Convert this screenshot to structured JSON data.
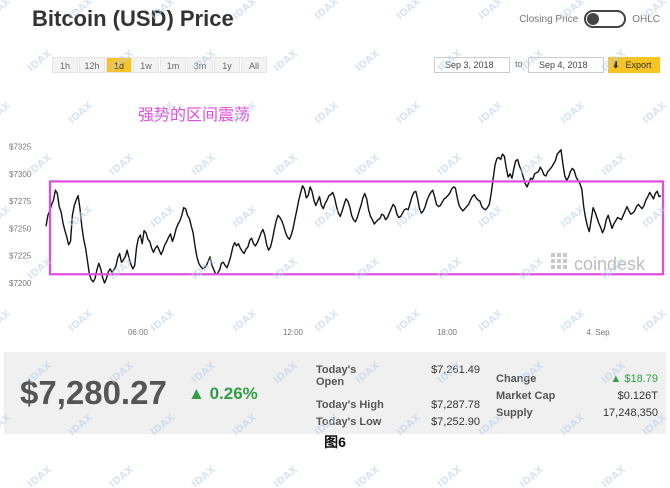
{
  "header": {
    "title": "Bitcoin (USD) Price",
    "toggle_left": "Closing Price",
    "toggle_right": "OHLC"
  },
  "toolbar": {
    "ranges": [
      "1h",
      "12h",
      "1d",
      "1w",
      "1m",
      "3m",
      "1y",
      "All"
    ],
    "active_range": "1d",
    "date_from": "Sep 3, 2018",
    "date_sep": "to",
    "date_to": "Sep 4, 2018",
    "export_label": "Export",
    "export_icon": "download-arrow-icon"
  },
  "chart_data": {
    "type": "line",
    "annotation": "强势的区间震荡",
    "x_ticks": [
      "06:00",
      "12:00",
      "18:00",
      "4. Sep"
    ],
    "y_ticks": [
      "$7325",
      "$7300",
      "$7275",
      "$7250",
      "$7225",
      "$7200"
    ],
    "ylim": [
      7195,
      7335
    ],
    "range_box": [
      7208,
      7293
    ],
    "line_color": "#111111",
    "box_color": "#e14be0",
    "annotation_color": "#e14be0",
    "watermark": "coindesk",
    "series": [
      {
        "values": [
          7252,
          7262,
          7266,
          7272,
          7276,
          7285,
          7282,
          7270,
          7265,
          7255,
          7248,
          7242,
          7235,
          7238,
          7262,
          7271,
          7276,
          7280,
          7268,
          7252,
          7240,
          7232,
          7220,
          7208,
          7203,
          7201,
          7204,
          7212,
          7218,
          7213,
          7205,
          7200,
          7204,
          7210,
          7213,
          7210,
          7212,
          7215,
          7223,
          7227,
          7219,
          7221,
          7224,
          7230,
          7223,
          7217,
          7213,
          7216,
          7233,
          7241,
          7244,
          7236,
          7248,
          7246,
          7240,
          7238,
          7232,
          7228,
          7232,
          7234,
          7230,
          7226,
          7230,
          7235,
          7238,
          7242,
          7245,
          7238,
          7243,
          7250,
          7254,
          7257,
          7262,
          7269,
          7268,
          7262,
          7259,
          7252,
          7246,
          7234,
          7224,
          7218,
          7215,
          7213,
          7214,
          7216,
          7220,
          7224,
          7216,
          7212,
          7208,
          7209,
          7212,
          7218,
          7219,
          7216,
          7214,
          7219,
          7225,
          7233,
          7237,
          7234,
          7236,
          7232,
          7229,
          7227,
          7231,
          7233,
          7239,
          7241,
          7236,
          7234,
          7237,
          7241,
          7246,
          7249,
          7244,
          7235,
          7230,
          7233,
          7240,
          7249,
          7257,
          7262,
          7260,
          7257,
          7252,
          7246,
          7242,
          7240,
          7244,
          7250,
          7259,
          7267,
          7276,
          7283,
          7289,
          7286,
          7278,
          7280,
          7288,
          7284,
          7276,
          7271,
          7275,
          7279,
          7271,
          7268,
          7273,
          7276,
          7280,
          7281,
          7283,
          7278,
          7270,
          7264,
          7261,
          7266,
          7272,
          7277,
          7275,
          7270,
          7262,
          7258,
          7256,
          7260,
          7266,
          7271,
          7278,
          7282,
          7277,
          7267,
          7261,
          7258,
          7254,
          7256,
          7258,
          7259,
          7263,
          7262,
          7258,
          7260,
          7264,
          7268,
          7272,
          7270,
          7263,
          7260,
          7261,
          7264,
          7267,
          7268,
          7267,
          7273,
          7279,
          7283,
          7284,
          7277,
          7268,
          7264,
          7266,
          7270,
          7276,
          7280,
          7283,
          7285,
          7279,
          7272,
          7270,
          7271,
          7274,
          7277,
          7278,
          7280,
          7282,
          7286,
          7288,
          7287,
          7278,
          7271,
          7268,
          7266,
          7268,
          7270,
          7272,
          7276,
          7279,
          7281,
          7278,
          7276,
          7275,
          7270,
          7268,
          7267,
          7269,
          7272,
          7282,
          7295,
          7308,
          7314,
          7315,
          7313,
          7318,
          7316,
          7305,
          7297,
          7300,
          7296,
          7305,
          7312,
          7313,
          7307,
          7303,
          7297,
          7291,
          7288,
          7292,
          7296,
          7295,
          7300,
          7301,
          7302,
          7306,
          7303,
          7299,
          7298,
          7302,
          7304,
          7306,
          7309,
          7312,
          7318,
          7320,
          7322,
          7309,
          7298,
          7294,
          7297,
          7302,
          7305,
          7303,
          7297,
          7294,
          7291,
          7286,
          7270,
          7260,
          7252,
          7247,
          7258,
          7269,
          7265,
          7260,
          7255,
          7251,
          7246,
          7250,
          7258,
          7262,
          7256,
          7250,
          7254,
          7257,
          7260,
          7259,
          7258,
          7262,
          7266,
          7270,
          7266,
          7263,
          7264,
          7266,
          7270,
          7272,
          7270,
          7268,
          7271,
          7276,
          7279,
          7283,
          7280,
          7277,
          7282,
          7284,
          7279,
          7280
        ]
      }
    ]
  },
  "stats": {
    "price": "$7,280.27",
    "change_pct": "0.26%",
    "today_open_label_1": "Today's",
    "today_open_label_2": "Open",
    "today_open": "$7,261.49",
    "today_high_label": "Today's High",
    "today_high": "$7,287.78",
    "today_low_label": "Today's Low",
    "today_low": "$7,252.90",
    "change_label": "Change",
    "change_value": "$18.79",
    "market_cap_label": "Market Cap",
    "market_cap": "$0.126T",
    "supply_label": "Supply",
    "supply": "17,248,350",
    "up_color": "#2f9e44"
  },
  "caption": "图6",
  "watermark_text": "IDAX"
}
